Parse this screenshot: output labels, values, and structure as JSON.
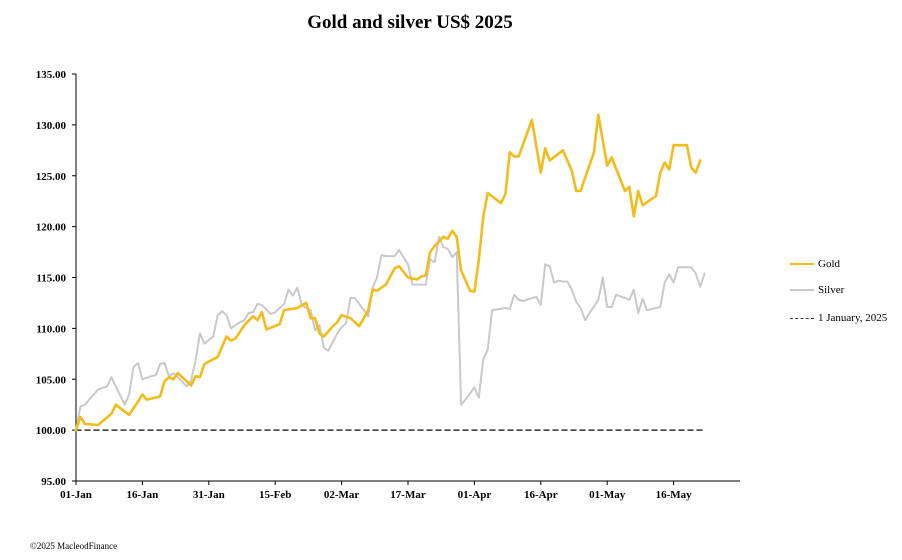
{
  "chart_data": {
    "type": "line",
    "title": "Gold and silver  US$ 2025",
    "xlabel": "",
    "ylabel": "",
    "ylim": [
      95,
      135
    ],
    "yticks": [
      "95.00",
      "100.00",
      "105.00",
      "110.00",
      "115.00",
      "120.00",
      "125.00",
      "130.00",
      "135.00"
    ],
    "xticks": [
      {
        "label": "01-Jan",
        "day": 0
      },
      {
        "label": "16-Jan",
        "day": 15
      },
      {
        "label": "31-Jan",
        "day": 30
      },
      {
        "label": "15-Feb",
        "day": 45
      },
      {
        "label": "02-Mar",
        "day": 60
      },
      {
        "label": "17-Mar",
        "day": 75
      },
      {
        "label": "01-Apr",
        "day": 90
      },
      {
        "label": "16-Apr",
        "day": 105
      },
      {
        "label": "01-May",
        "day": 120
      },
      {
        "label": "16-May",
        "day": 135
      }
    ],
    "xlim": [
      0,
      150
    ],
    "series": [
      {
        "name": "Gold",
        "color": "#F2BC1B",
        "points": [
          [
            0,
            100
          ],
          [
            1,
            101.3
          ],
          [
            2,
            100.6
          ],
          [
            5,
            100.5
          ],
          [
            8,
            101.6
          ],
          [
            9,
            102.5
          ],
          [
            12,
            101.5
          ],
          [
            14,
            102.8
          ],
          [
            15,
            103.5
          ],
          [
            16,
            103
          ],
          [
            19,
            103.3
          ],
          [
            20,
            104.8
          ],
          [
            21,
            105.2
          ],
          [
            22,
            105
          ],
          [
            23,
            105.6
          ],
          [
            26,
            104.4
          ],
          [
            27,
            105.3
          ],
          [
            28,
            105.2
          ],
          [
            29,
            106.5
          ],
          [
            32,
            107.2
          ],
          [
            34,
            109.2
          ],
          [
            35,
            108.8
          ],
          [
            36,
            109
          ],
          [
            38,
            110.3
          ],
          [
            40,
            111.2
          ],
          [
            41,
            110.8
          ],
          [
            42,
            111.6
          ],
          [
            43,
            109.9
          ],
          [
            46,
            110.4
          ],
          [
            47,
            111.8
          ],
          [
            50,
            112
          ],
          [
            52,
            112.5
          ],
          [
            53,
            111
          ],
          [
            54,
            111
          ],
          [
            55,
            109.5
          ],
          [
            56,
            109.2
          ],
          [
            58,
            110.2
          ],
          [
            59,
            110.6
          ],
          [
            60,
            111.3
          ],
          [
            62,
            111
          ],
          [
            64,
            110.2
          ],
          [
            66,
            111.8
          ],
          [
            67,
            113.8
          ],
          [
            68,
            113.7
          ],
          [
            70,
            114.3
          ],
          [
            72,
            115.9
          ],
          [
            73,
            116.1
          ],
          [
            75,
            115
          ],
          [
            77,
            114.8
          ],
          [
            78,
            115.1
          ],
          [
            79,
            115.2
          ],
          [
            80,
            117.5
          ],
          [
            81,
            118.1
          ],
          [
            83,
            119
          ],
          [
            84,
            118.8
          ],
          [
            85,
            119.6
          ],
          [
            86,
            119
          ],
          [
            87,
            115.7
          ],
          [
            89,
            113.7
          ],
          [
            90,
            113.6
          ],
          [
            91,
            116.7
          ],
          [
            92,
            121
          ],
          [
            93,
            123.3
          ],
          [
            96,
            122.3
          ],
          [
            97,
            123.2
          ],
          [
            98,
            127.3
          ],
          [
            99,
            126.9
          ],
          [
            100,
            126.9
          ],
          [
            103,
            130.5
          ],
          [
            105,
            125.3
          ],
          [
            106,
            127.7
          ],
          [
            107,
            126.5
          ],
          [
            110,
            127.5
          ],
          [
            112,
            125.5
          ],
          [
            113,
            123.5
          ],
          [
            114,
            123.5
          ],
          [
            117,
            127.3
          ],
          [
            118,
            131
          ],
          [
            120,
            126
          ],
          [
            121,
            126.8
          ],
          [
            124,
            123.5
          ],
          [
            125,
            123.9
          ],
          [
            126,
            121
          ],
          [
            127,
            123.5
          ],
          [
            128,
            122.1
          ],
          [
            131,
            123
          ],
          [
            132,
            125.3
          ],
          [
            133,
            126.3
          ],
          [
            134,
            125.6
          ],
          [
            135,
            128
          ],
          [
            138,
            128
          ],
          [
            139,
            125.8
          ],
          [
            140,
            125.3
          ],
          [
            141,
            126.5
          ]
        ]
      },
      {
        "name": "Silver",
        "color": "#C9C9C9",
        "points": [
          [
            0,
            100
          ],
          [
            1,
            102.3
          ],
          [
            2,
            102.5
          ],
          [
            5,
            104
          ],
          [
            7,
            104.3
          ],
          [
            8,
            105.2
          ],
          [
            9,
            104.3
          ],
          [
            11,
            102.5
          ],
          [
            12,
            103.5
          ],
          [
            13,
            106.2
          ],
          [
            14,
            106.6
          ],
          [
            15,
            105
          ],
          [
            17,
            105.3
          ],
          [
            18,
            105.4
          ],
          [
            19,
            106.5
          ],
          [
            20,
            106.6
          ],
          [
            21,
            105.3
          ],
          [
            22,
            105.6
          ],
          [
            23,
            105.2
          ],
          [
            25,
            104.3
          ],
          [
            26,
            104.9
          ],
          [
            27,
            106.8
          ],
          [
            28,
            109.5
          ],
          [
            29,
            108.5
          ],
          [
            31,
            109.2
          ],
          [
            32,
            111.3
          ],
          [
            33,
            111.7
          ],
          [
            34,
            111.3
          ],
          [
            35,
            110
          ],
          [
            37,
            110.6
          ],
          [
            38,
            110.8
          ],
          [
            39,
            111.5
          ],
          [
            40,
            111.6
          ],
          [
            41,
            112.4
          ],
          [
            42,
            112.3
          ],
          [
            44,
            111.4
          ],
          [
            45,
            111.6
          ],
          [
            47,
            112.4
          ],
          [
            48,
            113.8
          ],
          [
            49,
            113.2
          ],
          [
            50,
            114
          ],
          [
            51,
            112.3
          ],
          [
            52,
            112
          ],
          [
            53,
            111.8
          ],
          [
            54,
            109.8
          ],
          [
            55,
            110.3
          ],
          [
            56,
            108.1
          ],
          [
            57,
            107.8
          ],
          [
            59,
            109.5
          ],
          [
            60,
            110.1
          ],
          [
            61,
            110.5
          ],
          [
            62,
            113
          ],
          [
            63,
            113
          ],
          [
            64,
            112.4
          ],
          [
            66,
            111.2
          ],
          [
            67,
            114
          ],
          [
            68,
            115
          ],
          [
            69,
            117.2
          ],
          [
            70,
            117.1
          ],
          [
            72,
            117.1
          ],
          [
            73,
            117.7
          ],
          [
            75,
            116.3
          ],
          [
            76,
            114.3
          ],
          [
            79,
            114.3
          ],
          [
            80,
            116.8
          ],
          [
            81,
            116.5
          ],
          [
            82,
            119
          ],
          [
            83,
            118
          ],
          [
            84,
            117.8
          ],
          [
            85,
            117
          ],
          [
            86,
            117.5
          ],
          [
            87,
            102.5
          ],
          [
            88,
            103
          ],
          [
            90,
            104.2
          ],
          [
            91,
            103.2
          ],
          [
            92,
            107
          ],
          [
            93,
            107.9
          ],
          [
            94,
            111.8
          ],
          [
            97,
            112
          ],
          [
            98,
            111.9
          ],
          [
            99,
            113.3
          ],
          [
            100,
            112.8
          ],
          [
            101,
            112.7
          ],
          [
            104,
            113.1
          ],
          [
            105,
            112.3
          ],
          [
            106,
            116.3
          ],
          [
            107,
            116.1
          ],
          [
            108,
            114.5
          ],
          [
            109,
            114.7
          ],
          [
            110,
            114.6
          ],
          [
            111,
            114.6
          ],
          [
            112,
            113.8
          ],
          [
            113,
            112.6
          ],
          [
            114,
            112
          ],
          [
            115,
            110.8
          ],
          [
            116,
            111.5
          ],
          [
            118,
            112.8
          ],
          [
            119,
            115
          ],
          [
            120,
            112.1
          ],
          [
            121,
            112.1
          ],
          [
            122,
            113.3
          ],
          [
            124,
            113
          ],
          [
            125,
            112.8
          ],
          [
            126,
            113.8
          ],
          [
            127,
            111.5
          ],
          [
            128,
            112.9
          ],
          [
            129,
            111.8
          ],
          [
            132,
            112.1
          ],
          [
            133,
            114.5
          ],
          [
            134,
            115.3
          ],
          [
            135,
            114.5
          ],
          [
            136,
            116
          ],
          [
            139,
            116
          ],
          [
            140,
            115.4
          ],
          [
            141,
            114.1
          ],
          [
            142,
            115.4
          ]
        ]
      },
      {
        "name": "1 January, 2025",
        "color": "#333333",
        "dashed": true,
        "points": [
          [
            0,
            100
          ],
          [
            142,
            100
          ]
        ]
      }
    ],
    "legend_position": "right",
    "grid": false
  },
  "legend": [
    {
      "label": "Gold"
    },
    {
      "label": "Silver"
    },
    {
      "label": "1 January, 2025"
    }
  ],
  "credit": "©2025 MacleodFinance"
}
